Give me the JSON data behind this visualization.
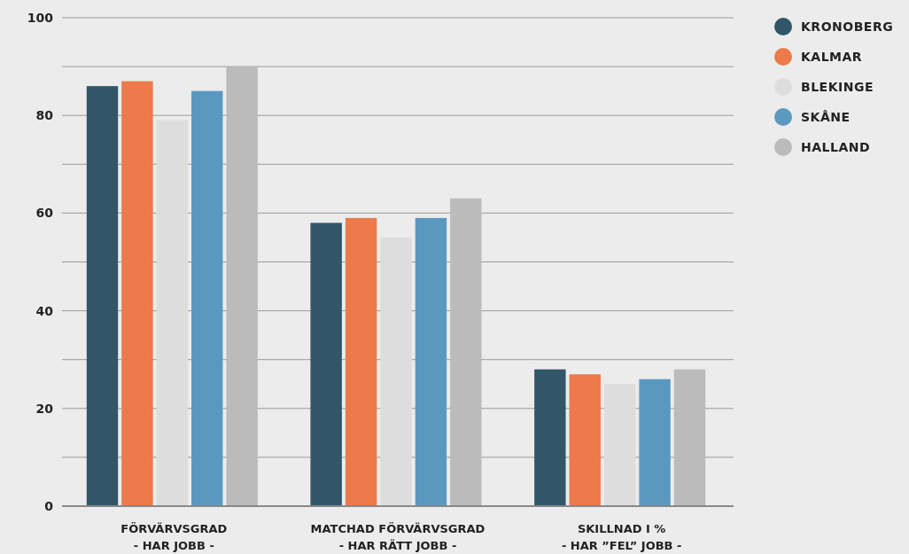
{
  "chart_data": {
    "type": "bar",
    "categories": [
      "FÖRVÄRVSGRAD\n- HAR JOBB -",
      "MATCHAD FÖRVÄRVSGRAD\n- HAR RÄTT JOBB -",
      "SKILLNAD I %\n- HAR ”FEL” JOBB -"
    ],
    "series": [
      {
        "name": "KRONOBERG",
        "color": "#31566a",
        "values": [
          86,
          58,
          28
        ]
      },
      {
        "name": "KALMAR",
        "color": "#ec7a4a",
        "values": [
          87,
          59,
          27
        ]
      },
      {
        "name": "BLEKINGE",
        "color": "#dddddd",
        "values": [
          79,
          55,
          25
        ]
      },
      {
        "name": "SKÅNE",
        "color": "#5b98c0",
        "values": [
          85,
          59,
          26
        ]
      },
      {
        "name": "HALLAND",
        "color": "#bbbbbb",
        "values": [
          90,
          63,
          28
        ]
      }
    ],
    "ylim": [
      0,
      100
    ],
    "yticks": [
      0,
      {
        "value": 10,
        "label": null
      },
      20,
      {
        "value": 30,
        "label": null
      },
      40,
      {
        "value": 50,
        "label": null
      },
      60,
      {
        "value": 70,
        "label": null
      },
      80,
      {
        "value": 90,
        "label": null
      },
      100
    ],
    "grid": "y",
    "legend": "top right"
  }
}
